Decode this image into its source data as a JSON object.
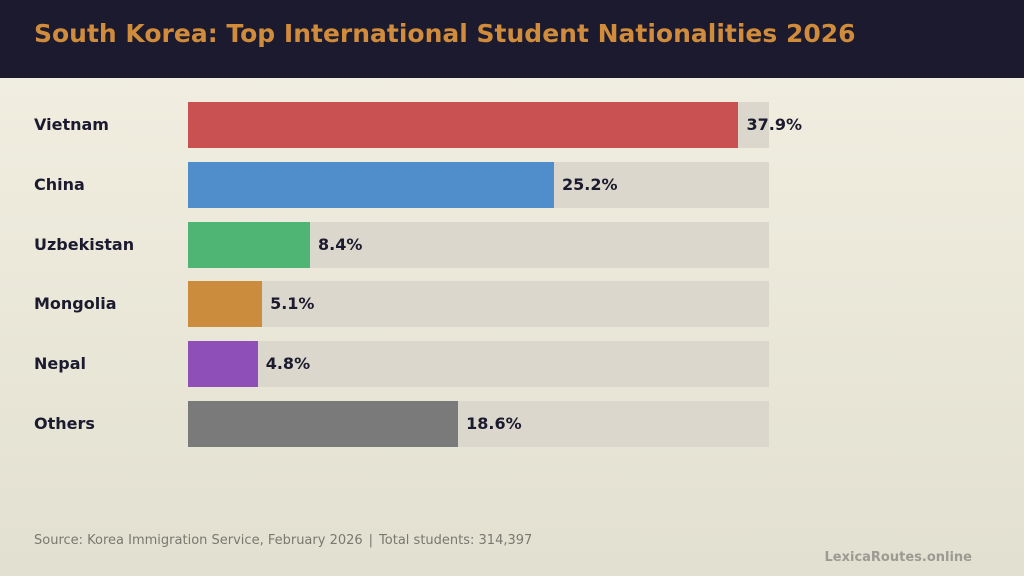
{
  "header": {
    "title": "South Korea: Top International Student Nationalities 2026",
    "title_color": "#d08b3b",
    "background": "#1b1a2e"
  },
  "chart_data": {
    "type": "bar",
    "orientation": "horizontal",
    "title": "South Korea: Top International Student Nationalities 2026",
    "categories": [
      "Vietnam",
      "China",
      "Uzbekistan",
      "Mongolia",
      "Nepal",
      "Others"
    ],
    "values": [
      37.9,
      25.2,
      8.4,
      5.1,
      4.8,
      18.6
    ],
    "value_labels": [
      "37.9%",
      "25.2%",
      "8.4%",
      "5.1%",
      "4.8%",
      "18.6%"
    ],
    "colors": [
      "#c95151",
      "#4f8dcb",
      "#4fb575",
      "#cc8c3e",
      "#8e4fb8",
      "#7a7a7a"
    ],
    "track_color": "#dbd7cc",
    "xlim": [
      0,
      40
    ],
    "xlabel": "",
    "ylabel": "",
    "grid": false,
    "legend": "none"
  },
  "footer": {
    "source": "Source: Korea Immigration Service, February 2026",
    "separator": "|",
    "total": "Total students: 314,397"
  },
  "brand": {
    "text": "LexicaRoutes.online"
  }
}
